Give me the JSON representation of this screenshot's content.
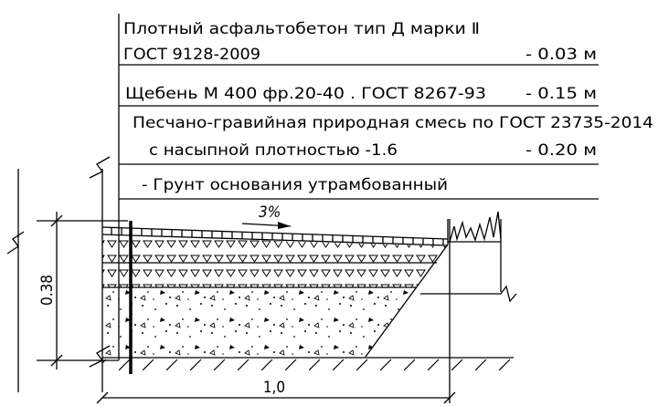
{
  "layers": [
    {
      "lines": [
        "Плотный асфальтобетон тип Д марки Ⅱ",
        "ГОСТ 9128-2009"
      ],
      "thickness": "- 0.03 м"
    },
    {
      "lines": [
        "Щебень М 400 фр.20-40 . ГОСТ 8267-93"
      ],
      "thickness": "- 0.15 м"
    },
    {
      "lines": [
        "Песчано-гравийная природная  смесь по ГОСТ 23735-2014",
        "с насыпной плотностью -1.6"
      ],
      "thickness": "- 0.20 м"
    },
    {
      "lines": [
        "- Грунт основания утрамбованный"
      ]
    }
  ],
  "slope": "3%",
  "depth": "0.38",
  "width": "1,0"
}
